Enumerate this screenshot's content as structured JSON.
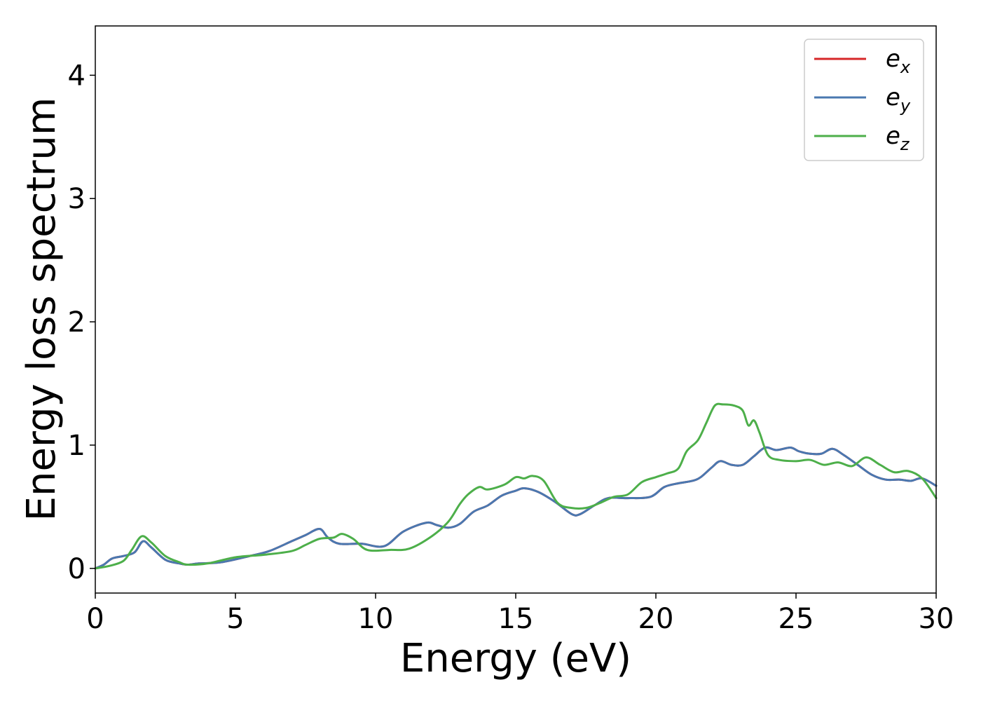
{
  "chart_data": {
    "type": "line",
    "xlabel": "Energy (eV)",
    "ylabel": "Energy loss spectrum",
    "xlim": [
      0,
      30
    ],
    "ylim": [
      -0.2,
      4.4
    ],
    "xticks": [
      "0",
      "5",
      "10",
      "15",
      "20",
      "25",
      "30"
    ],
    "yticks": [
      "0",
      "1",
      "2",
      "3",
      "4"
    ],
    "grid": false,
    "legend_position": "top-right",
    "series": [
      {
        "name": "e_x",
        "legend_base": "e",
        "legend_sub": "x",
        "color": "#d62728",
        "x": [
          0,
          0.3,
          0.6,
          1.0,
          1.4,
          1.7,
          2.0,
          2.5,
          3.0,
          3.3,
          3.7,
          4.5,
          5.5,
          6.2,
          7.0,
          7.5,
          8.0,
          8.3,
          8.7,
          9.5,
          10.3,
          11.0,
          11.8,
          12.2,
          12.6,
          13.0,
          13.5,
          14.0,
          14.5,
          15.0,
          15.3,
          15.8,
          16.4,
          17.0,
          17.3,
          17.8,
          18.3,
          19.0,
          19.8,
          20.3,
          20.8,
          21.3,
          21.6,
          22.0,
          22.3,
          22.7,
          23.1,
          23.5,
          23.9,
          24.3,
          24.8,
          25.1,
          25.5,
          25.9,
          26.3,
          26.7,
          27.2,
          27.7,
          28.2,
          28.7,
          29.1,
          29.5,
          30.0
        ],
        "y": [
          0.0,
          0.03,
          0.08,
          0.1,
          0.13,
          0.22,
          0.17,
          0.07,
          0.04,
          0.03,
          0.04,
          0.05,
          0.1,
          0.14,
          0.22,
          0.27,
          0.32,
          0.25,
          0.2,
          0.2,
          0.18,
          0.3,
          0.37,
          0.35,
          0.33,
          0.36,
          0.46,
          0.51,
          0.59,
          0.63,
          0.65,
          0.62,
          0.54,
          0.44,
          0.44,
          0.51,
          0.57,
          0.57,
          0.58,
          0.66,
          0.69,
          0.71,
          0.74,
          0.82,
          0.87,
          0.84,
          0.84,
          0.91,
          0.98,
          0.96,
          0.98,
          0.95,
          0.93,
          0.93,
          0.97,
          0.92,
          0.84,
          0.76,
          0.72,
          0.72,
          0.71,
          0.73,
          0.67
        ]
      },
      {
        "name": "e_y",
        "legend_base": "e",
        "legend_sub": "y",
        "color": "#4a78b0",
        "x": [
          0,
          0.3,
          0.6,
          1.0,
          1.4,
          1.7,
          2.0,
          2.5,
          3.0,
          3.3,
          3.7,
          4.5,
          5.5,
          6.2,
          7.0,
          7.5,
          8.0,
          8.3,
          8.7,
          9.5,
          10.3,
          11.0,
          11.8,
          12.2,
          12.6,
          13.0,
          13.5,
          14.0,
          14.5,
          15.0,
          15.3,
          15.8,
          16.4,
          17.0,
          17.3,
          17.8,
          18.3,
          19.0,
          19.8,
          20.3,
          20.8,
          21.3,
          21.6,
          22.0,
          22.3,
          22.7,
          23.1,
          23.5,
          23.9,
          24.3,
          24.8,
          25.1,
          25.5,
          25.9,
          26.3,
          26.7,
          27.2,
          27.7,
          28.2,
          28.7,
          29.1,
          29.5,
          30.0
        ],
        "y": [
          0.0,
          0.03,
          0.08,
          0.1,
          0.13,
          0.22,
          0.17,
          0.07,
          0.04,
          0.03,
          0.04,
          0.05,
          0.1,
          0.14,
          0.22,
          0.27,
          0.32,
          0.25,
          0.2,
          0.2,
          0.18,
          0.3,
          0.37,
          0.35,
          0.33,
          0.36,
          0.46,
          0.51,
          0.59,
          0.63,
          0.65,
          0.62,
          0.54,
          0.44,
          0.44,
          0.51,
          0.57,
          0.57,
          0.58,
          0.66,
          0.69,
          0.71,
          0.74,
          0.82,
          0.87,
          0.84,
          0.84,
          0.91,
          0.98,
          0.96,
          0.98,
          0.95,
          0.93,
          0.93,
          0.97,
          0.92,
          0.84,
          0.76,
          0.72,
          0.72,
          0.71,
          0.73,
          0.67
        ]
      },
      {
        "name": "e_z",
        "legend_base": "e",
        "legend_sub": "z",
        "color": "#4daf4a",
        "x": [
          0,
          0.5,
          1.0,
          1.3,
          1.65,
          2.0,
          2.5,
          3.0,
          3.3,
          4.0,
          5.0,
          6.0,
          7.0,
          7.5,
          8.0,
          8.5,
          8.8,
          9.2,
          9.7,
          10.5,
          11.2,
          12.0,
          12.6,
          13.0,
          13.3,
          13.7,
          14.0,
          14.6,
          15.0,
          15.3,
          15.6,
          16.0,
          16.5,
          17.0,
          17.5,
          18.0,
          18.5,
          19.0,
          19.5,
          20.0,
          20.4,
          20.8,
          21.1,
          21.5,
          21.8,
          22.1,
          22.4,
          22.8,
          23.1,
          23.3,
          23.5,
          23.7,
          24.0,
          24.4,
          25.0,
          25.5,
          26.0,
          26.5,
          27.0,
          27.5,
          28.0,
          28.5,
          29.0,
          29.5,
          30.0
        ],
        "y": [
          0.0,
          0.02,
          0.06,
          0.15,
          0.26,
          0.21,
          0.1,
          0.05,
          0.03,
          0.04,
          0.09,
          0.11,
          0.14,
          0.19,
          0.24,
          0.25,
          0.28,
          0.24,
          0.15,
          0.15,
          0.16,
          0.26,
          0.38,
          0.52,
          0.6,
          0.66,
          0.64,
          0.68,
          0.74,
          0.73,
          0.75,
          0.71,
          0.53,
          0.49,
          0.49,
          0.53,
          0.58,
          0.6,
          0.7,
          0.74,
          0.77,
          0.81,
          0.95,
          1.04,
          1.18,
          1.32,
          1.33,
          1.32,
          1.28,
          1.16,
          1.2,
          1.1,
          0.92,
          0.88,
          0.87,
          0.88,
          0.84,
          0.86,
          0.83,
          0.9,
          0.84,
          0.78,
          0.79,
          0.73,
          0.57
        ]
      }
    ]
  }
}
